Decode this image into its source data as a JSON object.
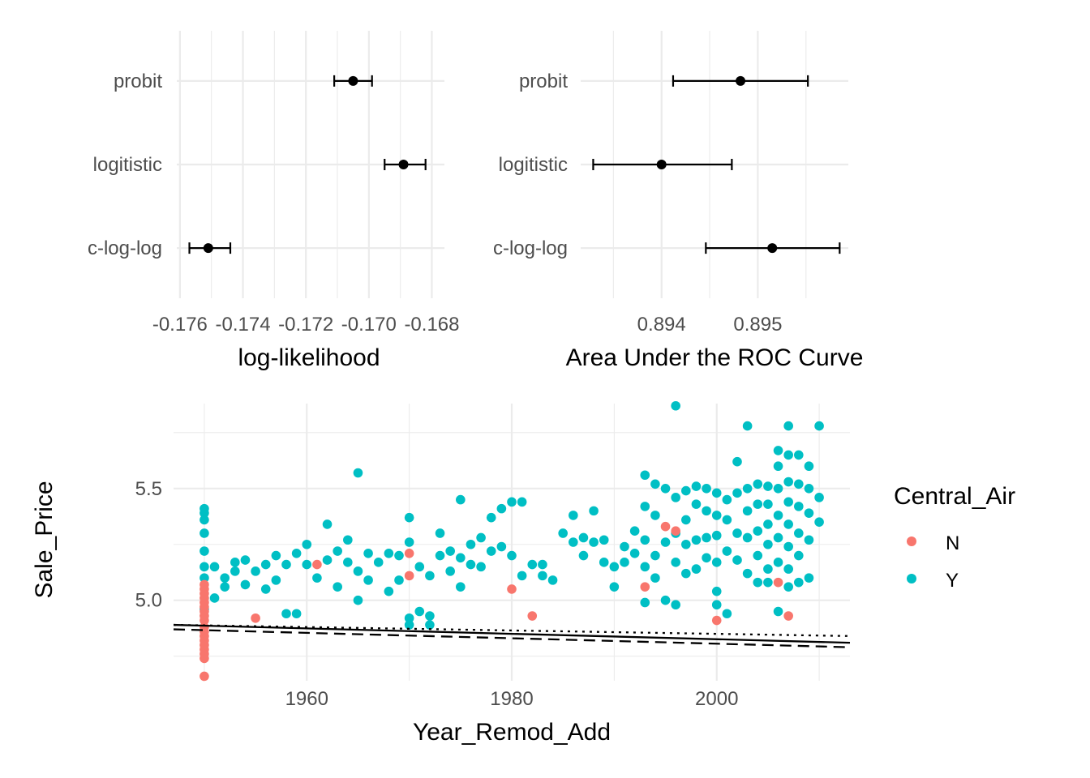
{
  "chart_data": [
    {
      "type": "dot-errorbar",
      "xlabel": "log-likelihood",
      "categories": [
        "c-log-log",
        "logitistic",
        "probit"
      ],
      "xlim": [
        -0.1761,
        -0.1676
      ],
      "xticks": [
        -0.176,
        -0.174,
        -0.172,
        -0.17,
        -0.168
      ],
      "xtick_labels": [
        "-0.176",
        "-0.174",
        "-0.172",
        "-0.170",
        "-0.168"
      ],
      "points": [
        {
          "category": "probit",
          "estimate": -0.1705,
          "lower": -0.1711,
          "upper": -0.1699
        },
        {
          "category": "logitistic",
          "estimate": -0.1689,
          "lower": -0.1695,
          "upper": -0.1682
        },
        {
          "category": "c-log-log",
          "estimate": -0.1751,
          "lower": -0.1757,
          "upper": -0.1744
        }
      ],
      "grid": true
    },
    {
      "type": "dot-errorbar",
      "xlabel": "Area Under the ROC Curve",
      "categories": [
        "c-log-log",
        "logitistic",
        "probit"
      ],
      "xlim": [
        0.89316,
        0.89594
      ],
      "xticks": [
        0.894,
        0.895
      ],
      "xtick_labels": [
        "0.894",
        "0.895"
      ],
      "points": [
        {
          "category": "probit",
          "estimate": 0.89482,
          "lower": 0.89412,
          "upper": 0.89552
        },
        {
          "category": "logitistic",
          "estimate": 0.894,
          "lower": 0.89329,
          "upper": 0.89473
        },
        {
          "category": "c-log-log",
          "estimate": 0.89515,
          "lower": 0.89446,
          "upper": 0.89585
        }
      ],
      "grid": true
    },
    {
      "type": "scatter",
      "xlabel": "Year_Remod_Add",
      "ylabel": "Sale_Price",
      "xlim": [
        1947,
        2013
      ],
      "ylim": [
        4.64,
        5.88
      ],
      "xticks": [
        1960,
        1980,
        2000
      ],
      "yticks": [
        5.0,
        5.5
      ],
      "xtick_labels": [
        "1960",
        "1980",
        "2000"
      ],
      "ytick_labels": [
        "5.0",
        "5.5"
      ],
      "legend_title": "Central_Air",
      "legend_position": "right",
      "series": [
        {
          "name": "N",
          "color": "#F8766D",
          "points": [
            [
              1950,
              4.66
            ],
            [
              1950,
              4.74
            ],
            [
              1950,
              4.76
            ],
            [
              1950,
              4.78
            ],
            [
              1950,
              4.8
            ],
            [
              1950,
              4.82
            ],
            [
              1950,
              4.84
            ],
            [
              1950,
              4.86
            ],
            [
              1950,
              4.88
            ],
            [
              1950,
              4.91
            ],
            [
              1950,
              4.93
            ],
            [
              1950,
              4.95
            ],
            [
              1950,
              4.97
            ],
            [
              1950,
              4.99
            ],
            [
              1950,
              5.01
            ],
            [
              1950,
              5.03
            ],
            [
              1950,
              5.05
            ],
            [
              1950,
              5.07
            ],
            [
              1955,
              4.92
            ],
            [
              1961,
              5.16
            ],
            [
              1970,
              5.21
            ],
            [
              1970,
              5.11
            ],
            [
              1980,
              5.05
            ],
            [
              1982,
              4.93
            ],
            [
              1993,
              5.06
            ],
            [
              1995,
              5.33
            ],
            [
              1996,
              5.31
            ],
            [
              2000,
              4.91
            ],
            [
              2006,
              5.08
            ],
            [
              2007,
              4.93
            ]
          ]
        },
        {
          "name": "Y",
          "color": "#00BFC4",
          "points": [
            [
              1950,
              5.41
            ],
            [
              1950,
              5.39
            ],
            [
              1950,
              5.36
            ],
            [
              1950,
              5.3
            ],
            [
              1950,
              5.22
            ],
            [
              1950,
              5.15
            ],
            [
              1950,
              5.1
            ],
            [
              1950,
              4.96
            ],
            [
              1951,
              5.15
            ],
            [
              1951,
              5.01
            ],
            [
              1952,
              5.1
            ],
            [
              1952,
              5.06
            ],
            [
              1953,
              5.17
            ],
            [
              1953,
              5.13
            ],
            [
              1954,
              5.18
            ],
            [
              1954,
              5.07
            ],
            [
              1955,
              5.13
            ],
            [
              1956,
              5.16
            ],
            [
              1956,
              5.05
            ],
            [
              1957,
              5.2
            ],
            [
              1957,
              5.09
            ],
            [
              1958,
              4.94
            ],
            [
              1958,
              5.16
            ],
            [
              1959,
              5.21
            ],
            [
              1959,
              4.94
            ],
            [
              1960,
              5.25
            ],
            [
              1960,
              5.16
            ],
            [
              1961,
              5.1
            ],
            [
              1962,
              5.34
            ],
            [
              1962,
              5.18
            ],
            [
              1963,
              5.22
            ],
            [
              1963,
              5.06
            ],
            [
              1964,
              5.17
            ],
            [
              1964,
              5.27
            ],
            [
              1965,
              5.57
            ],
            [
              1965,
              5.13
            ],
            [
              1965,
              5.0
            ],
            [
              1966,
              5.21
            ],
            [
              1966,
              5.09
            ],
            [
              1967,
              5.17
            ],
            [
              1968,
              5.21
            ],
            [
              1968,
              5.04
            ],
            [
              1969,
              5.2
            ],
            [
              1969,
              5.09
            ],
            [
              1970,
              5.37
            ],
            [
              1970,
              5.26
            ],
            [
              1970,
              4.92
            ],
            [
              1970,
              4.89
            ],
            [
              1971,
              5.15
            ],
            [
              1971,
              4.95
            ],
            [
              1972,
              5.11
            ],
            [
              1972,
              4.93
            ],
            [
              1972,
              4.89
            ],
            [
              1973,
              5.3
            ],
            [
              1973,
              5.2
            ],
            [
              1974,
              5.22
            ],
            [
              1974,
              5.13
            ],
            [
              1975,
              5.45
            ],
            [
              1975,
              5.19
            ],
            [
              1975,
              5.06
            ],
            [
              1976,
              5.25
            ],
            [
              1976,
              5.16
            ],
            [
              1977,
              5.28
            ],
            [
              1977,
              5.15
            ],
            [
              1978,
              5.37
            ],
            [
              1978,
              5.22
            ],
            [
              1979,
              5.41
            ],
            [
              1979,
              5.24
            ],
            [
              1980,
              5.44
            ],
            [
              1980,
              5.2
            ],
            [
              1981,
              5.44
            ],
            [
              1981,
              5.11
            ],
            [
              1982,
              5.16
            ],
            [
              1983,
              5.16
            ],
            [
              1983,
              5.11
            ],
            [
              1984,
              5.09
            ],
            [
              1985,
              5.3
            ],
            [
              1986,
              5.26
            ],
            [
              1986,
              5.38
            ],
            [
              1987,
              5.28
            ],
            [
              1987,
              5.2
            ],
            [
              1988,
              5.4
            ],
            [
              1988,
              5.26
            ],
            [
              1989,
              5.27
            ],
            [
              1989,
              5.17
            ],
            [
              1990,
              5.15
            ],
            [
              1990,
              5.06
            ],
            [
              1991,
              5.24
            ],
            [
              1991,
              5.17
            ],
            [
              1992,
              5.31
            ],
            [
              1992,
              5.21
            ],
            [
              1993,
              5.56
            ],
            [
              1993,
              5.42
            ],
            [
              1993,
              5.27
            ],
            [
              1993,
              5.15
            ],
            [
              1993,
              4.99
            ],
            [
              1994,
              5.52
            ],
            [
              1994,
              5.38
            ],
            [
              1994,
              5.2
            ],
            [
              1994,
              5.1
            ],
            [
              1995,
              5.5
            ],
            [
              1995,
              5.26
            ],
            [
              1995,
              5.0
            ],
            [
              1996,
              5.87
            ],
            [
              1996,
              5.46
            ],
            [
              1996,
              5.3
            ],
            [
              1996,
              5.17
            ],
            [
              1996,
              4.98
            ],
            [
              1997,
              5.49
            ],
            [
              1997,
              5.36
            ],
            [
              1997,
              5.25
            ],
            [
              1997,
              5.12
            ],
            [
              1998,
              5.51
            ],
            [
              1998,
              5.43
            ],
            [
              1998,
              5.27
            ],
            [
              1998,
              5.14
            ],
            [
              1999,
              5.5
            ],
            [
              1999,
              5.4
            ],
            [
              1999,
              5.28
            ],
            [
              1999,
              5.19
            ],
            [
              2000,
              5.48
            ],
            [
              2000,
              5.38
            ],
            [
              2000,
              5.29
            ],
            [
              2000,
              5.17
            ],
            [
              2000,
              5.04
            ],
            [
              2000,
              4.98
            ],
            [
              2001,
              5.45
            ],
            [
              2001,
              5.36
            ],
            [
              2001,
              5.22
            ],
            [
              2001,
              4.94
            ],
            [
              2002,
              5.62
            ],
            [
              2002,
              5.48
            ],
            [
              2002,
              5.3
            ],
            [
              2002,
              5.18
            ],
            [
              2003,
              5.78
            ],
            [
              2003,
              5.5
            ],
            [
              2003,
              5.4
            ],
            [
              2003,
              5.28
            ],
            [
              2003,
              5.12
            ],
            [
              2004,
              5.52
            ],
            [
              2004,
              5.43
            ],
            [
              2004,
              5.31
            ],
            [
              2004,
              5.2
            ],
            [
              2004,
              5.08
            ],
            [
              2005,
              5.51
            ],
            [
              2005,
              5.43
            ],
            [
              2005,
              5.34
            ],
            [
              2005,
              5.25
            ],
            [
              2005,
              5.14
            ],
            [
              2005,
              5.08
            ],
            [
              2006,
              5.67
            ],
            [
              2006,
              5.6
            ],
            [
              2006,
              5.5
            ],
            [
              2006,
              5.38
            ],
            [
              2006,
              5.28
            ],
            [
              2006,
              5.17
            ],
            [
              2006,
              4.95
            ],
            [
              2007,
              5.78
            ],
            [
              2007,
              5.65
            ],
            [
              2007,
              5.53
            ],
            [
              2007,
              5.44
            ],
            [
              2007,
              5.34
            ],
            [
              2007,
              5.24
            ],
            [
              2007,
              5.14
            ],
            [
              2007,
              5.06
            ],
            [
              2008,
              5.65
            ],
            [
              2008,
              5.52
            ],
            [
              2008,
              5.42
            ],
            [
              2008,
              5.3
            ],
            [
              2008,
              5.2
            ],
            [
              2008,
              5.08
            ],
            [
              2009,
              5.6
            ],
            [
              2009,
              5.5
            ],
            [
              2009,
              5.39
            ],
            [
              2009,
              5.27
            ],
            [
              2009,
              5.1
            ],
            [
              2010,
              5.78
            ],
            [
              2010,
              5.46
            ],
            [
              2010,
              5.35
            ]
          ]
        }
      ],
      "reference_lines": [
        {
          "style": "solid",
          "x": [
            1947,
            2013
          ],
          "y": [
            4.89,
            4.81
          ]
        },
        {
          "style": "dashed",
          "x": [
            1947,
            2013
          ],
          "y": [
            4.87,
            4.79
          ]
        },
        {
          "style": "dotted",
          "x": [
            1947,
            2013
          ],
          "y": [
            4.89,
            4.84
          ]
        }
      ],
      "grid": true
    }
  ]
}
